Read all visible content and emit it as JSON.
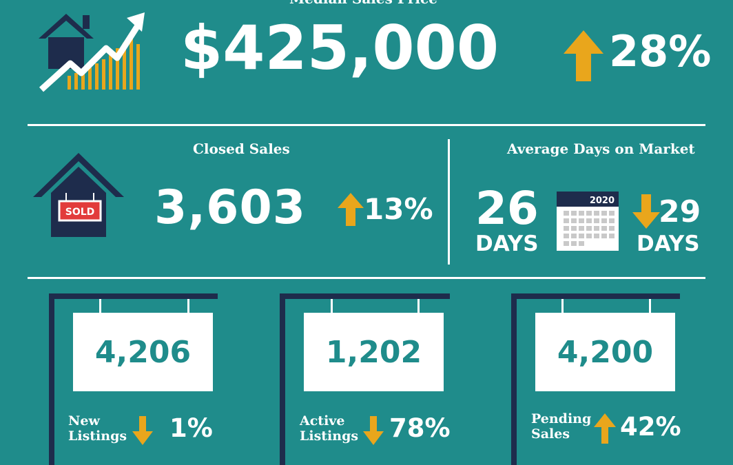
{
  "median_price": {
    "title": "Median Sales Price",
    "value": "$425,000",
    "change": "28%",
    "direction": "up"
  },
  "closed_sales": {
    "title": "Closed Sales",
    "value": "3,603",
    "change": "13%",
    "direction": "up",
    "sign_text": "SOLD"
  },
  "days_on_market": {
    "title": "Average Days on Market",
    "value": "26",
    "unit": "DAYS",
    "calendar_year": "2020",
    "previous": "29",
    "previous_unit": "DAYS",
    "direction": "down"
  },
  "listings": [
    {
      "value": "4,206",
      "label_line1": "New",
      "label_line2": "Listings",
      "change": "1%",
      "direction": "down"
    },
    {
      "value": "1,202",
      "label_line1": "Active",
      "label_line2": "Listings",
      "change": "78%",
      "direction": "down"
    },
    {
      "value": "4,200",
      "label_line1": "Pending",
      "label_line2": "Sales",
      "change": "42%",
      "direction": "up"
    }
  ],
  "colors": {
    "background": "#1f8c8b",
    "accent_arrow": "#e9a61c",
    "navy": "#1e2c4c",
    "white": "#ffffff"
  },
  "icons": [
    "house-chart-icon",
    "sold-house-icon",
    "calendar-icon",
    "up-arrow-icon",
    "down-arrow-icon"
  ]
}
